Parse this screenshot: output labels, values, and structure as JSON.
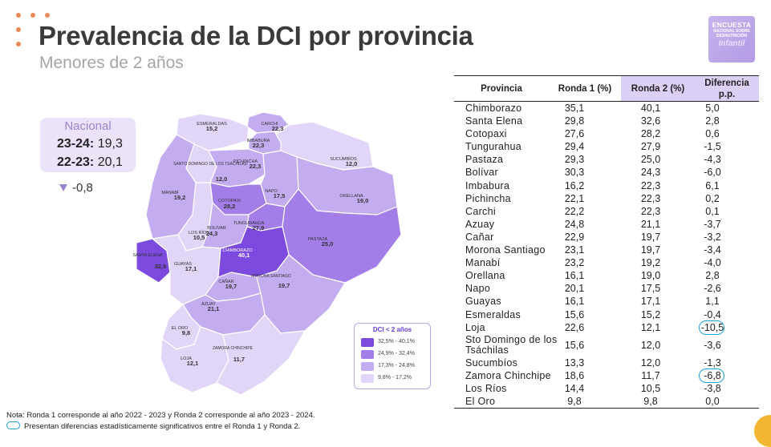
{
  "title": "Prevalencia de la DCI por provincia",
  "subtitle": "Menores de 2 años",
  "logo": {
    "line1": "ENCUESTA",
    "line2": "NACIONAL SOBRE",
    "line3": "DESNUTRICIÓN",
    "line4": "Infantil"
  },
  "nacional": {
    "title": "Nacional",
    "rows": [
      {
        "label": "23-24:",
        "value": "19,3"
      },
      {
        "label": "22-23:",
        "value": "20,1"
      }
    ],
    "diff": "-0,8"
  },
  "legend": {
    "title": "DCI < 2 años",
    "items": [
      {
        "label": "32,5% - 40,1%",
        "color": "#7d4ae0"
      },
      {
        "label": "24,9% - 32,4%",
        "color": "#a37ee9"
      },
      {
        "label": "17,3% - 24,8%",
        "color": "#c4acf1"
      },
      {
        "label": "9,8% - 17,2%",
        "color": "#e1d6f8"
      }
    ]
  },
  "map_labels": [
    {
      "name": "ESMERALDAS",
      "value": "15,2"
    },
    {
      "name": "CARCHI",
      "value": "22,3"
    },
    {
      "name": "IMBABURA",
      "value": "22,3"
    },
    {
      "name": "SUCUMBÍOS",
      "value": "12,0"
    },
    {
      "name": "SANTO DOMINGO DE LOS TSÁCHILAS",
      "value": "12,0"
    },
    {
      "name": "PICHINCHA",
      "value": "22,3"
    },
    {
      "name": "MANABÍ",
      "value": "19,2"
    },
    {
      "name": "NAPO",
      "value": "17,5"
    },
    {
      "name": "ORELLANA",
      "value": "19,0"
    },
    {
      "name": "COTOPAXI",
      "value": "28,2"
    },
    {
      "name": "TUNGURAHUA",
      "value": "27,9"
    },
    {
      "name": "LOS RÍOS",
      "value": "10,5"
    },
    {
      "name": "BOLÍVAR",
      "value": "24,3"
    },
    {
      "name": "PASTAZA",
      "value": "25,0"
    },
    {
      "name": "SANTA ELENA",
      "value": "32,6"
    },
    {
      "name": "CHIMBORAZO",
      "value": "40,1"
    },
    {
      "name": "GUAYAS",
      "value": "17,1"
    },
    {
      "name": "CAÑAR",
      "value": "19,7"
    },
    {
      "name": "MORONA SANTIAGO",
      "value": "19,7"
    },
    {
      "name": "AZUAY",
      "value": "21,1"
    },
    {
      "name": "EL ORO",
      "value": "9,8"
    },
    {
      "name": "ZAMORA CHINCHIPE",
      "value": "11,7"
    },
    {
      "name": "LOJA",
      "value": "12,1"
    }
  ],
  "chart_data": {
    "type": "table",
    "columns": [
      "Provincia",
      "Ronda 1 (%)",
      "Ronda 2 (%)",
      "Diferencia p.p."
    ],
    "rows": [
      {
        "provincia": "Chimborazo",
        "r1": "35,1",
        "r2": "40,1",
        "dif": "5,0",
        "sig": false
      },
      {
        "provincia": "Santa Elena",
        "r1": "29,8",
        "r2": "32,6",
        "dif": "2,8",
        "sig": false
      },
      {
        "provincia": "Cotopaxi",
        "r1": "27,6",
        "r2": "28,2",
        "dif": "0,6",
        "sig": false
      },
      {
        "provincia": "Tungurahua",
        "r1": "29,4",
        "r2": "27,9",
        "dif": "-1,5",
        "sig": false
      },
      {
        "provincia": "Pastaza",
        "r1": "29,3",
        "r2": "25,0",
        "dif": "-4,3",
        "sig": false
      },
      {
        "provincia": "Bolívar",
        "r1": "30,3",
        "r2": "24,3",
        "dif": "-6,0",
        "sig": false
      },
      {
        "provincia": "Imbabura",
        "r1": "16,2",
        "r2": "22,3",
        "dif": "6,1",
        "sig": false
      },
      {
        "provincia": "Pichincha",
        "r1": "22,1",
        "r2": "22,3",
        "dif": "0,2",
        "sig": false
      },
      {
        "provincia": "Carchi",
        "r1": "22,2",
        "r2": "22,3",
        "dif": "0,1",
        "sig": false
      },
      {
        "provincia": "Azuay",
        "r1": "24,8",
        "r2": "21,1",
        "dif": "-3,7",
        "sig": false
      },
      {
        "provincia": "Cañar",
        "r1": "22,9",
        "r2": "19,7",
        "dif": "-3,2",
        "sig": false
      },
      {
        "provincia": "Morona Santiago",
        "r1": "23,1",
        "r2": "19,7",
        "dif": "-3,4",
        "sig": false
      },
      {
        "provincia": "Manabí",
        "r1": "23,2",
        "r2": "19,2",
        "dif": "-4,0",
        "sig": false
      },
      {
        "provincia": "Orellana",
        "r1": "16,1",
        "r2": "19,0",
        "dif": "2,8",
        "sig": false
      },
      {
        "provincia": "Napo",
        "r1": "20,1",
        "r2": "17,5",
        "dif": "-2,6",
        "sig": false
      },
      {
        "provincia": "Guayas",
        "r1": "16,1",
        "r2": "17,1",
        "dif": "1,1",
        "sig": false
      },
      {
        "provincia": "Esmeraldas",
        "r1": "15,6",
        "r2": "15,2",
        "dif": "-0,4",
        "sig": false
      },
      {
        "provincia": "Loja",
        "r1": "22,6",
        "r2": "12,1",
        "dif": "-10,5",
        "sig": true
      },
      {
        "provincia": "Sto Domingo de los Tsáchilas",
        "r1": "15,6",
        "r2": "12,0",
        "dif": "-3,6",
        "sig": false
      },
      {
        "provincia": "Sucumbíos",
        "r1": "13,3",
        "r2": "12,0",
        "dif": "-1,3",
        "sig": false
      },
      {
        "provincia": "Zamora Chinchipe",
        "r1": "18,6",
        "r2": "11,7",
        "dif": "-6,8",
        "sig": true
      },
      {
        "provincia": "Los Ríos",
        "r1": "14,4",
        "r2": "10,5",
        "dif": "-3,8",
        "sig": false
      },
      {
        "provincia": "El Oro",
        "r1": "9,8",
        "r2": "9,8",
        "dif": "0,0",
        "sig": false
      }
    ]
  },
  "notes": {
    "note1": "Nota: Ronda 1 corresponde al año 2022 - 2023 y Ronda 2 corresponde al año 2023 - 2024.",
    "note2": "Presentan diferencias estadísticamente significativos entre el Ronda 1 y Ronda 2."
  }
}
